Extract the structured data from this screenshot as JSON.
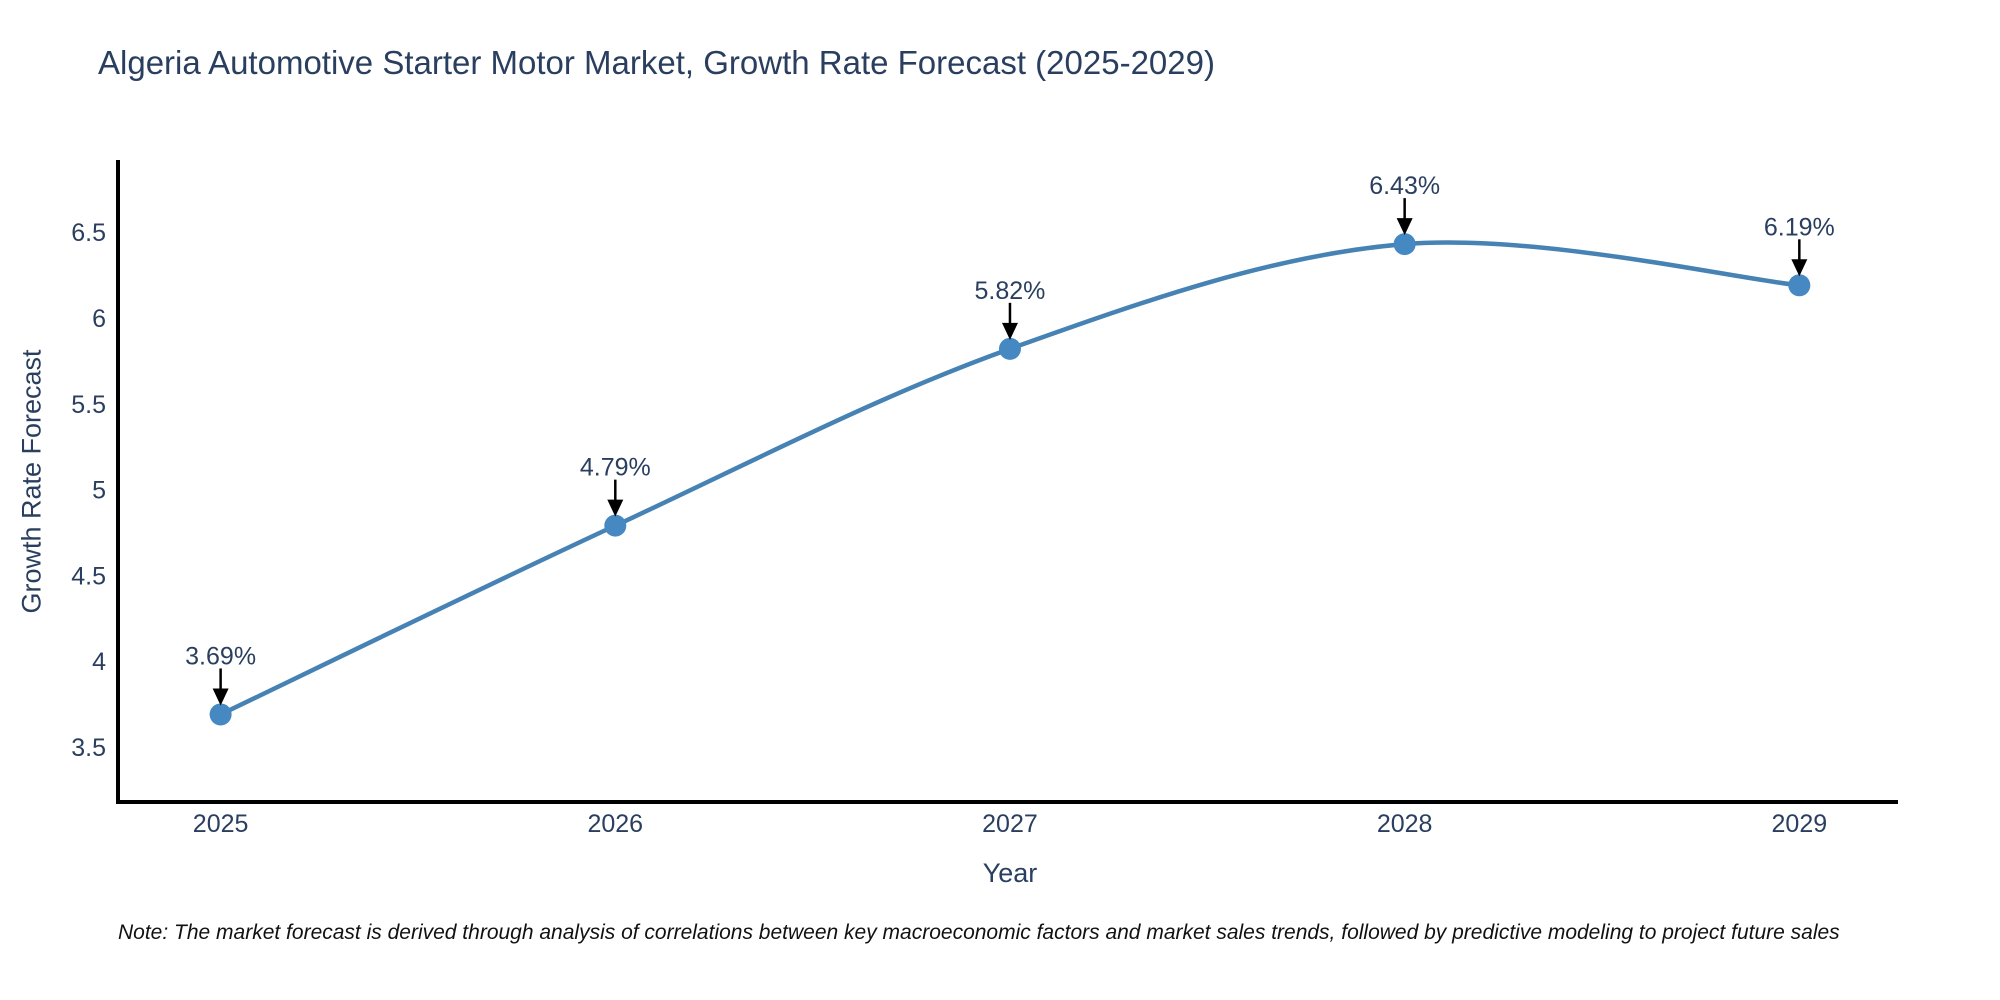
{
  "chart_data": {
    "type": "line",
    "title": "Algeria Automotive Starter Motor Market, Growth Rate Forecast (2025-2029)",
    "xlabel": "Year",
    "ylabel": "Growth Rate Forecast",
    "note": "Note: The market forecast is derived through analysis of correlations between key macroeconomic factors and market sales trends, followed by predictive modeling to project future sales",
    "x": [
      2025,
      2026,
      2027,
      2028,
      2029
    ],
    "categories": [
      "2025",
      "2026",
      "2027",
      "2028",
      "2029"
    ],
    "values": [
      3.69,
      4.79,
      5.82,
      6.43,
      6.19
    ],
    "point_labels": [
      "3.69%",
      "4.79%",
      "5.82%",
      "6.43%",
      "6.19%"
    ],
    "yticks": [
      3.5,
      4,
      4.5,
      5,
      5.5,
      6,
      6.5
    ],
    "ytick_labels": [
      "3.5",
      "4",
      "4.5",
      "5",
      "5.5",
      "6",
      "6.5"
    ],
    "xlim": [
      2024.74,
      2029.25
    ],
    "ylim": [
      3.18,
      6.92
    ],
    "grid": false,
    "legend": "none",
    "line_shape": "spline",
    "line_color": "#4682b4",
    "marker_color": "#4588c2",
    "text_color": "#2a3f5f",
    "note_color": "#111111",
    "spine_color": "#000000",
    "arrow_color": "#000000",
    "background_color": "#ffffff"
  }
}
